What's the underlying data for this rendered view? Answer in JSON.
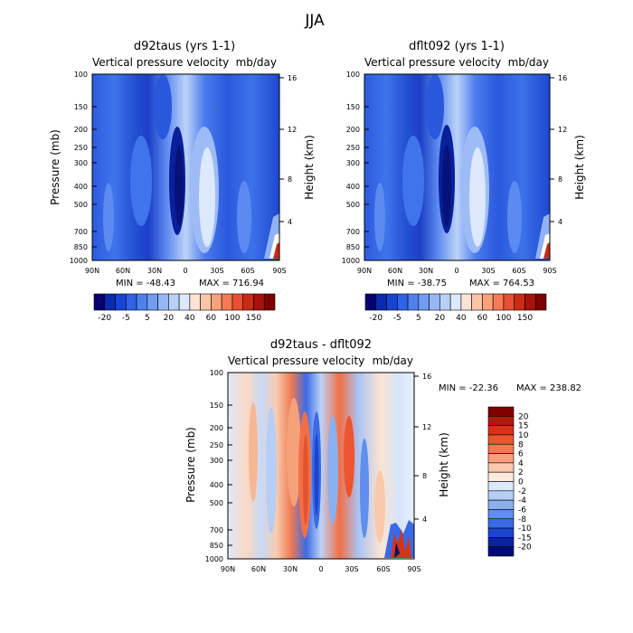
{
  "page_title": "JJA",
  "chart_data": [
    {
      "type": "heatmap",
      "title": "d92taus (yrs 1-1)",
      "subtitle_left": "Vertical pressure velocity",
      "subtitle_right": "mb/day",
      "xlabel": "",
      "ylabel_left": "Pressure (mb)",
      "ylabel_right": "Height (km)",
      "x_ticks": [
        "90N",
        "60N",
        "30N",
        "0",
        "30S",
        "60S",
        "90S"
      ],
      "y_ticks_pressure": [
        "100",
        "150",
        "200",
        "250",
        "300",
        "400",
        "500",
        "700",
        "850",
        "1000"
      ],
      "y_ticks_height": [
        "16",
        "12",
        "8",
        "4"
      ],
      "min_label": "MIN = -48.43",
      "max_label": "MAX = 716.94",
      "min": -48.43,
      "max": 716.94,
      "colorbar_labels": [
        "-20",
        "-5",
        "5",
        "20",
        "40",
        "60",
        "100",
        "150"
      ],
      "colorbar_colors": [
        "#08006f",
        "#0a2bb0",
        "#1844d6",
        "#2f63e8",
        "#4e80ee",
        "#729cf2",
        "#95b8f5",
        "#b9d1f8",
        "#dce8fb",
        "#fde3d3",
        "#fbc4a6",
        "#f8a27d",
        "#f57a55",
        "#e94f32",
        "#cc2a15",
        "#a8120a",
        "#7e0000"
      ],
      "colorbar_position": "bottom"
    },
    {
      "type": "heatmap",
      "title": "dflt092 (yrs 1-1)",
      "subtitle_left": "Vertical pressure velocity",
      "subtitle_right": "mb/day",
      "xlabel": "",
      "ylabel_left": "Pressure (mb)",
      "ylabel_right": "Height (km)",
      "x_ticks": [
        "90N",
        "60N",
        "30N",
        "0",
        "30S",
        "60S",
        "90S"
      ],
      "y_ticks_pressure": [
        "100",
        "150",
        "200",
        "250",
        "300",
        "400",
        "500",
        "700",
        "850",
        "1000"
      ],
      "y_ticks_height": [
        "16",
        "12",
        "8",
        "4"
      ],
      "min_label": "MIN = -38.75",
      "max_label": "MAX = 764.53",
      "min": -38.75,
      "max": 764.53,
      "colorbar_labels": [
        "-20",
        "-5",
        "5",
        "20",
        "40",
        "60",
        "100",
        "150"
      ],
      "colorbar_colors": [
        "#08006f",
        "#0a2bb0",
        "#1844d6",
        "#2f63e8",
        "#4e80ee",
        "#729cf2",
        "#95b8f5",
        "#b9d1f8",
        "#dce8fb",
        "#fde3d3",
        "#fbc4a6",
        "#f8a27d",
        "#f57a55",
        "#e94f32",
        "#cc2a15",
        "#a8120a",
        "#7e0000"
      ],
      "colorbar_position": "bottom"
    },
    {
      "type": "heatmap",
      "title": "d92taus - dflt092",
      "subtitle_left": "Vertical pressure velocity",
      "subtitle_right": "mb/day",
      "xlabel": "",
      "ylabel_left": "Pressure (mb)",
      "ylabel_right": "Height (km)",
      "x_ticks": [
        "90N",
        "60N",
        "30N",
        "0",
        "30S",
        "60S",
        "90S"
      ],
      "y_ticks_pressure": [
        "100",
        "150",
        "200",
        "250",
        "300",
        "400",
        "500",
        "700",
        "850",
        "1000"
      ],
      "y_ticks_height": [
        "16",
        "12",
        "8",
        "4"
      ],
      "min_label": "MIN = -22.36",
      "max_label": "MAX = 238.82",
      "min": -22.36,
      "max": 238.82,
      "colorbar_labels": [
        "20",
        "15",
        "10",
        "8",
        "6",
        "4",
        "2",
        "0",
        "-2",
        "-4",
        "-6",
        "-8",
        "-10",
        "-15",
        "-20"
      ],
      "colorbar_colors": [
        "#800000",
        "#b01a0a",
        "#d43318",
        "#ec5530",
        "#f47a50",
        "#f7a07a",
        "#fac8aa",
        "#fdeadc",
        "#dce8fb",
        "#b6cdf6",
        "#8bb0f2",
        "#5f8eec",
        "#3a6ae4",
        "#1b44cf",
        "#0b22a6",
        "#020c70"
      ],
      "colorbar_position": "right"
    }
  ]
}
